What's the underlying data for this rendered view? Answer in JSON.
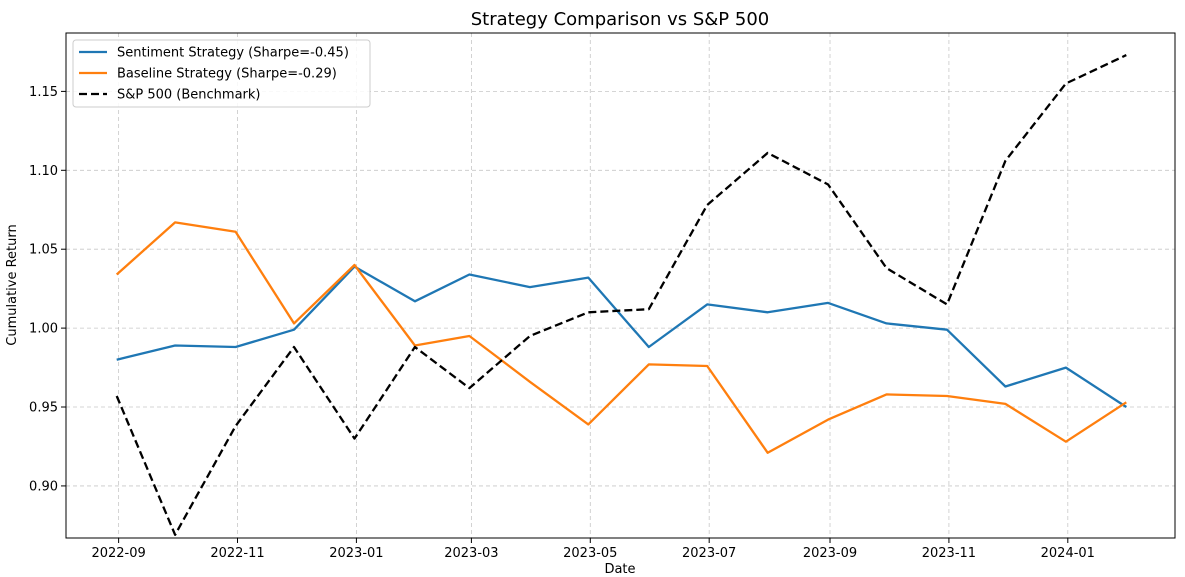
{
  "chart_data": {
    "type": "line",
    "title": "Strategy Comparison vs S&P 500",
    "xlabel": "Date",
    "ylabel": "Cumulative Return",
    "x": [
      "2022-08-31",
      "2022-09-30",
      "2022-10-31",
      "2022-11-30",
      "2022-12-31",
      "2023-01-31",
      "2023-02-28",
      "2023-03-31",
      "2023-04-30",
      "2023-05-31",
      "2023-06-30",
      "2023-07-31",
      "2023-08-31",
      "2023-09-30",
      "2023-10-31",
      "2023-11-30",
      "2023-12-31",
      "2024-01-31"
    ],
    "x_ticks": [
      "2022-09",
      "2022-11",
      "2023-01",
      "2023-03",
      "2023-05",
      "2023-07",
      "2023-09",
      "2023-11",
      "2024-01"
    ],
    "y_ticks": [
      "0.90",
      "0.95",
      "1.00",
      "1.05",
      "1.10",
      "1.15"
    ],
    "xlim": [
      "2022-08-05",
      "2024-02-25"
    ],
    "ylim": [
      0.867,
      1.187
    ],
    "grid": true,
    "legend_position": "top-left",
    "series": [
      {
        "name": "Sentiment Strategy (Sharpe=-0.45)",
        "color": "#1f77b4",
        "style": "solid",
        "values": [
          0.98,
          0.989,
          0.988,
          0.999,
          1.039,
          1.017,
          1.034,
          1.026,
          1.032,
          0.988,
          1.015,
          1.01,
          1.016,
          1.003,
          0.999,
          0.963,
          0.975,
          0.95
        ]
      },
      {
        "name": "Baseline Strategy (Sharpe=-0.29)",
        "color": "#ff7f0e",
        "style": "solid",
        "values": [
          1.034,
          1.067,
          1.061,
          1.003,
          1.04,
          0.989,
          0.995,
          0.966,
          0.939,
          0.977,
          0.976,
          0.921,
          0.942,
          0.958,
          0.957,
          0.952,
          0.928,
          0.953
        ]
      },
      {
        "name": "S&P 500 (Benchmark)",
        "color": "#000000",
        "style": "dashed",
        "values": [
          0.957,
          0.869,
          0.938,
          0.988,
          0.93,
          0.988,
          0.962,
          0.995,
          1.01,
          1.012,
          1.078,
          1.111,
          1.091,
          1.038,
          1.015,
          1.106,
          1.155,
          1.173
        ]
      }
    ]
  }
}
